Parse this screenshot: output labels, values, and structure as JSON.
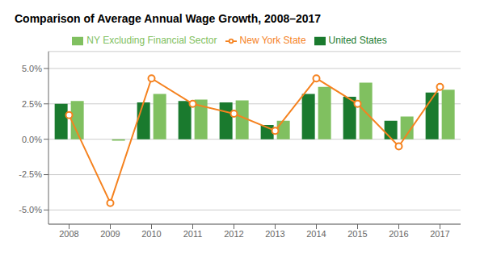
{
  "chart_data": {
    "type": "bar",
    "title": "Comparison of Average Annual Wage Growth, 2008–2017",
    "categories": [
      "2008",
      "2009",
      "2010",
      "2011",
      "2012",
      "2013",
      "2014",
      "2015",
      "2016",
      "2017"
    ],
    "series": [
      {
        "name": "United States",
        "type": "bar",
        "color": "#1a7a2e",
        "values": [
          2.5,
          0.0,
          2.6,
          2.7,
          2.6,
          1.0,
          3.2,
          3.0,
          1.3,
          3.3
        ]
      },
      {
        "name": "NY Excluding Financial Sector",
        "type": "bar",
        "color": "#80c060",
        "values": [
          2.7,
          -0.1,
          3.2,
          2.8,
          2.75,
          1.3,
          3.7,
          4.0,
          1.6,
          3.5
        ]
      },
      {
        "name": "New York State",
        "type": "line",
        "color": "#f5821f",
        "marker": "circle",
        "values": [
          1.7,
          -4.5,
          4.3,
          2.5,
          1.8,
          0.6,
          4.3,
          2.5,
          -0.5,
          3.7
        ]
      }
    ],
    "ylim": [
      -6.0,
      6.2
    ],
    "yticks": [
      {
        "value": -5.0,
        "label": "-5.0%"
      },
      {
        "value": -2.5,
        "label": "-2.5%"
      },
      {
        "value": 0.0,
        "label": "0.0%"
      },
      {
        "value": 2.5,
        "label": "2.5%"
      },
      {
        "value": 5.0,
        "label": "5.0%"
      }
    ],
    "grid": true,
    "legend": "top"
  }
}
